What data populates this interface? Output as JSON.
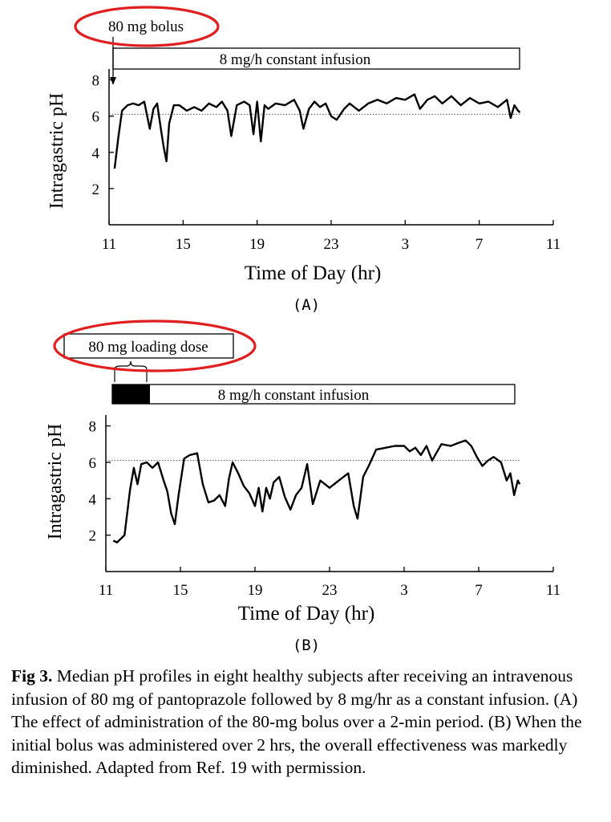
{
  "chart_data": [
    {
      "type": "line",
      "panel_label": "(A)",
      "bar_label": "8 mg/h constant infusion",
      "annotation": "80 mg bolus",
      "xlabel": "Time of Day (hr)",
      "ylabel": "Intragastric pH",
      "xticks": [
        "11",
        "15",
        "19",
        "23",
        "3",
        "7",
        "11"
      ],
      "yticks": [
        "2",
        "4",
        "6",
        "8"
      ],
      "xlim": [
        11,
        35
      ],
      "ylim": [
        0,
        8.6
      ],
      "reference_line": 6.1,
      "series": [
        {
          "x": [
            11.3,
            11.5,
            11.7,
            12.0,
            12.3,
            12.6,
            12.9,
            13.2,
            13.4,
            13.6,
            13.8,
            13.95,
            14.1,
            14.25,
            14.5,
            14.8,
            15.2,
            15.6,
            16.0,
            16.4,
            16.8,
            17.1,
            17.4,
            17.6,
            17.9,
            18.3,
            18.6,
            18.8,
            19.0,
            19.2,
            19.4,
            19.6,
            20.0,
            20.5,
            21.0,
            21.3,
            21.5,
            21.8,
            22.1,
            22.4,
            22.7,
            23.0,
            23.3,
            23.7,
            24.0,
            24.5,
            25.0,
            25.5,
            26.0,
            26.5,
            27.0,
            27.5,
            27.8,
            28.2,
            28.6,
            29.0,
            29.5,
            30.0,
            30.5,
            31.0,
            31.5,
            32.0,
            32.5,
            32.7,
            32.9,
            33.1,
            33.2
          ],
          "y": [
            3.1,
            4.8,
            6.3,
            6.6,
            6.7,
            6.6,
            6.8,
            5.3,
            6.4,
            6.7,
            5.3,
            4.3,
            3.5,
            5.6,
            6.6,
            6.6,
            6.3,
            6.5,
            6.3,
            6.7,
            6.5,
            6.8,
            6.3,
            4.9,
            6.6,
            6.8,
            6.6,
            5.0,
            6.8,
            4.6,
            6.6,
            6.4,
            6.7,
            6.6,
            6.9,
            6.3,
            5.3,
            6.4,
            6.8,
            6.5,
            6.7,
            6.0,
            5.8,
            6.4,
            6.7,
            6.3,
            6.7,
            6.9,
            6.7,
            7.0,
            6.9,
            7.2,
            6.4,
            6.9,
            7.1,
            6.7,
            7.1,
            6.6,
            7.0,
            6.7,
            6.8,
            6.5,
            6.9,
            5.9,
            6.6,
            6.3,
            6.2
          ]
        }
      ]
    },
    {
      "type": "line",
      "panel_label": "(B)",
      "bar_label": "8 mg/h constant infusion",
      "annotation": "80 mg loading dose",
      "xlabel": "Time of Day (hr)",
      "ylabel": "Intragastric pH",
      "xticks": [
        "11",
        "15",
        "19",
        "23",
        "3",
        "7",
        "11"
      ],
      "yticks": [
        "2",
        "4",
        "6",
        "8"
      ],
      "xlim": [
        11,
        35
      ],
      "ylim": [
        0,
        8.6
      ],
      "reference_line": 6.1,
      "series": [
        {
          "x": [
            11.4,
            11.6,
            12.0,
            12.3,
            12.5,
            12.7,
            12.9,
            13.2,
            13.5,
            13.8,
            14.1,
            14.3,
            14.5,
            14.7,
            14.9,
            15.2,
            15.5,
            15.9,
            16.2,
            16.5,
            16.8,
            17.1,
            17.4,
            17.6,
            17.8,
            18.1,
            18.4,
            18.7,
            19.0,
            19.2,
            19.4,
            19.6,
            19.8,
            20.0,
            20.3,
            20.6,
            20.9,
            21.2,
            21.5,
            21.8,
            22.1,
            22.5,
            23.0,
            23.5,
            24.0,
            24.3,
            24.5,
            24.8,
            25.1,
            25.5,
            26.0,
            26.5,
            27.0,
            27.3,
            27.6,
            27.9,
            28.2,
            28.5,
            29.0,
            29.5,
            30.0,
            30.3,
            30.6,
            30.9,
            31.2,
            31.5,
            31.8,
            32.2,
            32.5,
            32.7,
            32.9,
            33.1,
            33.2
          ],
          "y": [
            1.7,
            1.6,
            2.0,
            4.5,
            5.7,
            4.8,
            5.9,
            6.0,
            5.7,
            6.0,
            5.0,
            4.4,
            3.2,
            2.6,
            4.2,
            6.2,
            6.4,
            6.5,
            4.8,
            3.8,
            3.9,
            4.2,
            3.6,
            5.1,
            6.0,
            5.4,
            4.7,
            4.3,
            3.6,
            4.6,
            3.3,
            4.6,
            4.0,
            4.9,
            5.2,
            4.1,
            3.4,
            4.2,
            4.6,
            5.9,
            3.7,
            5.0,
            4.6,
            5.0,
            5.4,
            3.6,
            2.9,
            5.2,
            5.8,
            6.7,
            6.8,
            6.9,
            6.9,
            6.6,
            6.8,
            6.4,
            6.9,
            6.1,
            7.0,
            6.9,
            7.1,
            7.2,
            6.9,
            6.3,
            5.8,
            6.1,
            6.3,
            6.0,
            5.0,
            5.4,
            4.2,
            5.0,
            4.8
          ]
        }
      ]
    }
  ],
  "caption": {
    "label": "Fig 3.",
    "text": " Median pH profiles in eight healthy subjects after receiving an intravenous infusion of 80 mg of pantoprazole followed by 8 mg/hr as a constant infusion. (A) The effect of administration of the 80-mg bolus over a 2-min period. (B) When the initial bolus was administered over 2 hrs, the overall effectiveness was markedly diminished. Adapted from Ref. 19 with permission."
  },
  "colors": {
    "line": "#000000",
    "highlight": "#e02020",
    "reference": "#555555"
  }
}
